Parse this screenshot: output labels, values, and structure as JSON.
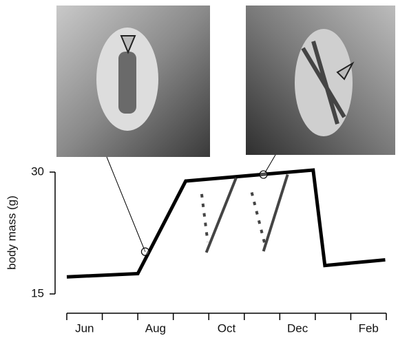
{
  "chart_data": {
    "type": "line",
    "y_label": "body mass (g)",
    "xlim": [
      0,
      9
    ],
    "ylim": [
      15,
      30
    ],
    "xticks": [
      0,
      1,
      2,
      3,
      4,
      5,
      6,
      7,
      8,
      9
    ],
    "xtick_labels": [
      {
        "value": 0.5,
        "label": "Jun"
      },
      {
        "value": 2.5,
        "label": "Aug"
      },
      {
        "value": 4.5,
        "label": "Oct"
      },
      {
        "value": 6.5,
        "label": "Dec"
      },
      {
        "value": 8.5,
        "label": "Feb"
      }
    ],
    "yticks": [
      15,
      30
    ],
    "series": [
      {
        "color": "#000000",
        "style": "solid",
        "width": 5,
        "x": [
          0,
          2.0,
          3.35,
          6.94,
          7.27,
          8.97
        ],
        "values": [
          17.1,
          17.5,
          28.9,
          30.25,
          18.5,
          19.2
        ]
      },
      {
        "color": "#444444",
        "style": "solid",
        "width": 4,
        "x": [
          3.93,
          4.77
        ],
        "values": [
          20.1,
          29.3
        ]
      },
      {
        "color": "#444444",
        "style": "solid",
        "width": 4,
        "x": [
          5.54,
          6.22
        ],
        "values": [
          20.25,
          29.7
        ]
      },
      {
        "color": "#444444",
        "style": "dotted",
        "width": 4,
        "x": [
          3.8,
          3.97
        ],
        "values": [
          27.3,
          21.4
        ]
      },
      {
        "color": "#444444",
        "style": "dotted",
        "width": 4,
        "x": [
          5.21,
          5.58
        ],
        "values": [
          27.5,
          21.1
        ]
      }
    ],
    "highlights": {
      "x": [
        2.21,
        5.54
      ],
      "values": [
        20.2,
        29.7
      ]
    }
  }
}
